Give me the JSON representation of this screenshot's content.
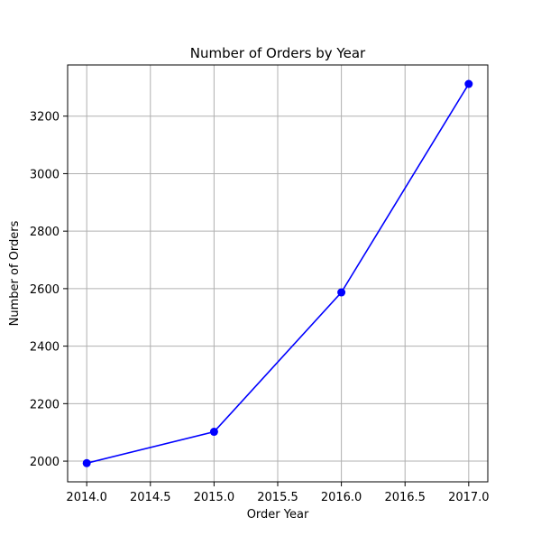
{
  "chart_data": {
    "type": "line",
    "title": "Number of Orders by Year",
    "xlabel": "Order Year",
    "ylabel": "Number of Orders",
    "x": [
      2014,
      2015,
      2016,
      2017
    ],
    "series": [
      {
        "values": [
          1993,
          2102,
          2587,
          3312
        ],
        "color": "#0000ff",
        "marker": "circle"
      }
    ],
    "xlim": [
      2013.85,
      2017.15
    ],
    "ylim": [
      1928,
      3378
    ],
    "xticks": [
      "2014.0",
      "2014.5",
      "2015.0",
      "2015.5",
      "2016.0",
      "2016.5",
      "2017.0"
    ],
    "yticks": [
      "2000",
      "2200",
      "2400",
      "2600",
      "2800",
      "3000",
      "3200"
    ],
    "grid": true,
    "grid_color": "#b0b0b0",
    "legend": "none"
  }
}
